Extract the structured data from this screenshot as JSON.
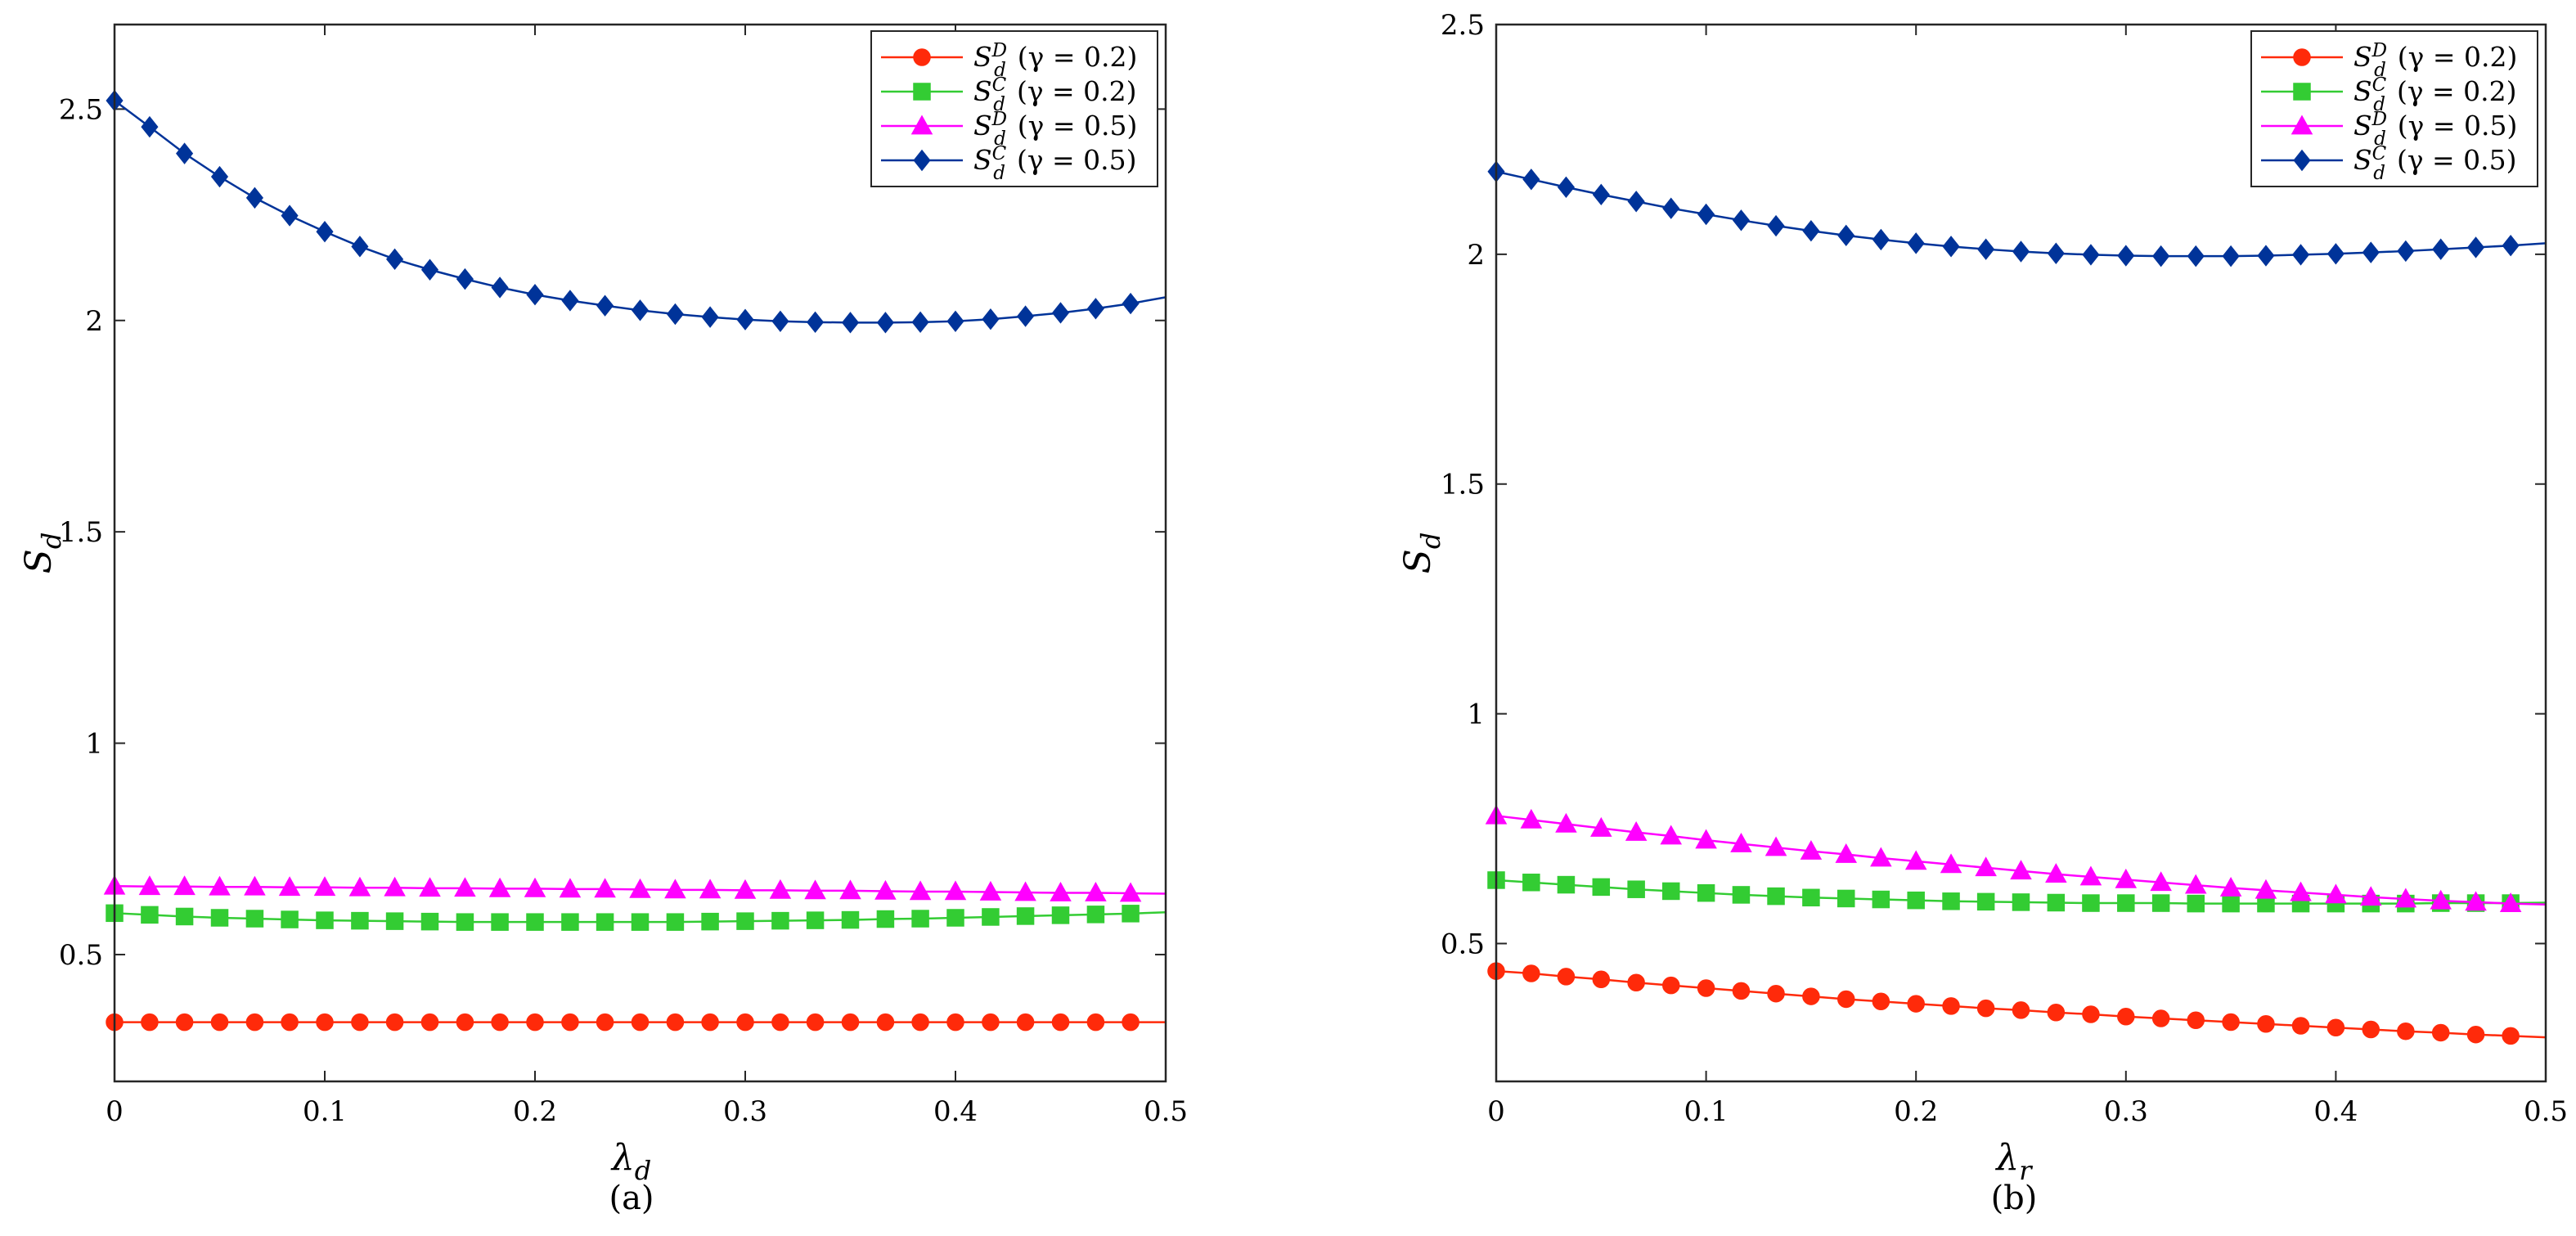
{
  "figure": {
    "panels": [
      "(a)",
      "(b)"
    ]
  },
  "chart_data": [
    {
      "type": "line",
      "panel_label": "(a)",
      "xlabel": "λ_d",
      "xlabel_main": "λ",
      "xlabel_sub": "d",
      "ylabel": "S_d",
      "ylabel_main": "S",
      "ylabel_sub": "d",
      "xlim": [
        0,
        0.5
      ],
      "ylim": [
        0.2,
        2.7
      ],
      "xticks": [
        0,
        0.1,
        0.2,
        0.3,
        0.4,
        0.5
      ],
      "xtick_labels": [
        "0",
        "0.1",
        "0.2",
        "0.3",
        "0.4",
        "0.5"
      ],
      "yticks": [
        0.5,
        1,
        1.5,
        2,
        2.5
      ],
      "ytick_labels": [
        "0.5",
        "1",
        "1.5",
        "2",
        "2.5"
      ],
      "grid": false,
      "legend_position": "top-right",
      "x": [
        0,
        0.0167,
        0.0333,
        0.05,
        0.0667,
        0.0833,
        0.1,
        0.1167,
        0.1333,
        0.15,
        0.1667,
        0.1833,
        0.2,
        0.2167,
        0.2333,
        0.25,
        0.2667,
        0.2833,
        0.3,
        0.3167,
        0.3333,
        0.35,
        0.3667,
        0.3833,
        0.4,
        0.4167,
        0.4333,
        0.45,
        0.4667,
        0.4833,
        0.5
      ],
      "series": [
        {
          "name": "S_d^D (γ = 0.2)",
          "sup": "D",
          "gamma_text": "(γ = 0.2)",
          "color": "#ff2a0a",
          "marker": "circle",
          "values": [
            0.34,
            0.34,
            0.34,
            0.34,
            0.34,
            0.34,
            0.34,
            0.34,
            0.34,
            0.34,
            0.34,
            0.34,
            0.34,
            0.34,
            0.34,
            0.34,
            0.34,
            0.34,
            0.34,
            0.34,
            0.34,
            0.34,
            0.34,
            0.34,
            0.34,
            0.34,
            0.34,
            0.34,
            0.34,
            0.34,
            0.34
          ]
        },
        {
          "name": "S_d^C (γ = 0.2)",
          "sup": "C",
          "gamma_text": "(γ = 0.2)",
          "color": "#33cc33",
          "marker": "square",
          "values": [
            0.598,
            0.594,
            0.59,
            0.587,
            0.585,
            0.583,
            0.581,
            0.58,
            0.579,
            0.578,
            0.577,
            0.577,
            0.577,
            0.577,
            0.577,
            0.577,
            0.577,
            0.578,
            0.579,
            0.58,
            0.581,
            0.582,
            0.584,
            0.585,
            0.587,
            0.589,
            0.591,
            0.593,
            0.595,
            0.597,
            0.6
          ]
        },
        {
          "name": "S_d^D (γ = 0.5)",
          "sup": "D",
          "gamma_text": "(γ = 0.5)",
          "color": "#ff00ff",
          "marker": "triangle",
          "values": [
            0.662,
            0.661,
            0.661,
            0.66,
            0.66,
            0.659,
            0.659,
            0.658,
            0.658,
            0.657,
            0.657,
            0.656,
            0.656,
            0.655,
            0.655,
            0.654,
            0.653,
            0.653,
            0.652,
            0.652,
            0.651,
            0.651,
            0.65,
            0.649,
            0.649,
            0.648,
            0.647,
            0.646,
            0.646,
            0.645,
            0.644
          ]
        },
        {
          "name": "S_d^C (γ = 0.5)",
          "sup": "C",
          "gamma_text": "(γ = 0.5)",
          "color": "#003399",
          "marker": "diamond",
          "values": [
            2.52,
            2.458,
            2.395,
            2.34,
            2.29,
            2.248,
            2.21,
            2.175,
            2.145,
            2.12,
            2.098,
            2.078,
            2.061,
            2.047,
            2.035,
            2.024,
            2.015,
            2.008,
            2.002,
            1.998,
            1.996,
            1.995,
            1.995,
            1.996,
            1.998,
            2.003,
            2.01,
            2.018,
            2.028,
            2.04,
            2.055
          ]
        }
      ]
    },
    {
      "type": "line",
      "panel_label": "(b)",
      "xlabel": "λ_r",
      "xlabel_main": "λ",
      "xlabel_sub": "r",
      "ylabel": "S_d",
      "ylabel_main": "S",
      "ylabel_sub": "d",
      "xlim": [
        0,
        0.5
      ],
      "ylim": [
        0.2,
        2.5
      ],
      "xticks": [
        0,
        0.1,
        0.2,
        0.3,
        0.4,
        0.5
      ],
      "xtick_labels": [
        "0",
        "0.1",
        "0.2",
        "0.3",
        "0.4",
        "0.5"
      ],
      "yticks": [
        0.5,
        1,
        1.5,
        2,
        2.5
      ],
      "ytick_labels": [
        "0.5",
        "1",
        "1.5",
        "2",
        "2.5"
      ],
      "grid": false,
      "legend_position": "top-right",
      "x": [
        0,
        0.0167,
        0.0333,
        0.05,
        0.0667,
        0.0833,
        0.1,
        0.1167,
        0.1333,
        0.15,
        0.1667,
        0.1833,
        0.2,
        0.2167,
        0.2333,
        0.25,
        0.2667,
        0.2833,
        0.3,
        0.3167,
        0.3333,
        0.35,
        0.3667,
        0.3833,
        0.4,
        0.4167,
        0.4333,
        0.45,
        0.4667,
        0.4833,
        0.5
      ],
      "series": [
        {
          "name": "S_d^D (γ = 0.2)",
          "sup": "D",
          "gamma_text": "(γ = 0.2)",
          "color": "#ff2a0a",
          "marker": "circle",
          "values": [
            0.44,
            0.435,
            0.428,
            0.422,
            0.415,
            0.409,
            0.403,
            0.397,
            0.391,
            0.385,
            0.379,
            0.374,
            0.369,
            0.364,
            0.359,
            0.355,
            0.35,
            0.346,
            0.341,
            0.337,
            0.333,
            0.329,
            0.325,
            0.321,
            0.317,
            0.313,
            0.309,
            0.306,
            0.302,
            0.299,
            0.296
          ]
        },
        {
          "name": "S_d^C (γ = 0.2)",
          "sup": "C",
          "gamma_text": "(γ = 0.2)",
          "color": "#33cc33",
          "marker": "square",
          "values": [
            0.638,
            0.633,
            0.628,
            0.623,
            0.618,
            0.614,
            0.61,
            0.606,
            0.603,
            0.6,
            0.598,
            0.596,
            0.594,
            0.592,
            0.591,
            0.59,
            0.589,
            0.588,
            0.588,
            0.588,
            0.587,
            0.587,
            0.587,
            0.587,
            0.587,
            0.587,
            0.587,
            0.588,
            0.588,
            0.588,
            0.589
          ]
        },
        {
          "name": "S_d^D (γ = 0.5)",
          "sup": "D",
          "gamma_text": "(γ = 0.5)",
          "color": "#ff00ff",
          "marker": "triangle",
          "values": [
            0.778,
            0.769,
            0.76,
            0.751,
            0.742,
            0.734,
            0.725,
            0.717,
            0.709,
            0.701,
            0.694,
            0.686,
            0.679,
            0.672,
            0.665,
            0.658,
            0.651,
            0.645,
            0.639,
            0.633,
            0.627,
            0.621,
            0.616,
            0.611,
            0.606,
            0.601,
            0.597,
            0.593,
            0.59,
            0.587,
            0.585
          ]
        },
        {
          "name": "S_d^C (γ = 0.5)",
          "sup": "C",
          "gamma_text": "(γ = 0.5)",
          "color": "#003399",
          "marker": "diamond",
          "values": [
            2.18,
            2.163,
            2.146,
            2.13,
            2.115,
            2.1,
            2.087,
            2.074,
            2.062,
            2.051,
            2.041,
            2.032,
            2.024,
            2.017,
            2.011,
            2.006,
            2.002,
            1.999,
            1.997,
            1.996,
            1.996,
            1.996,
            1.997,
            1.999,
            2.001,
            2.004,
            2.007,
            2.011,
            2.015,
            2.019,
            2.024
          ]
        }
      ]
    }
  ]
}
